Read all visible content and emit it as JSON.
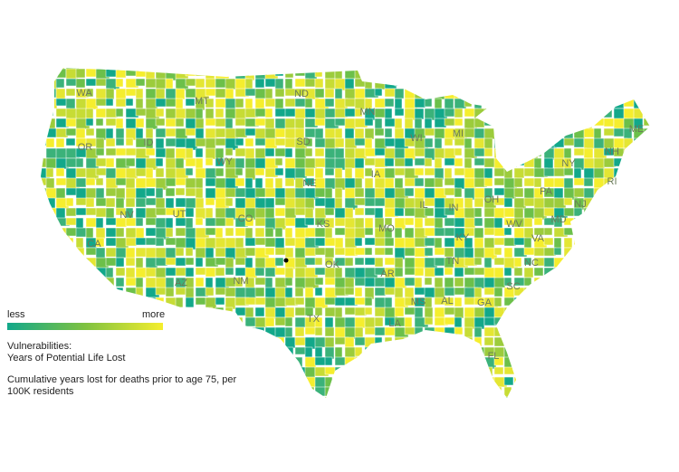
{
  "map": {
    "state_labels": [
      "WA",
      "MT",
      "ND",
      "MN",
      "ME",
      "OR",
      "ID",
      "WY",
      "SD",
      "WI",
      "MI",
      "NY",
      "NH",
      "IA",
      "NE",
      "PA",
      "RI",
      "NV",
      "UT",
      "CO",
      "KS",
      "IL",
      "IN",
      "OH",
      "NJ",
      "MD",
      "MO",
      "WV",
      "CA",
      "KY",
      "VA",
      "OK",
      "AR",
      "TN",
      "NC",
      "AZ",
      "NM",
      "SC",
      "MS",
      "AL",
      "GA",
      "TX",
      "LA",
      "FL"
    ]
  },
  "legend": {
    "low": "less",
    "high": "more"
  },
  "caption": {
    "title": "Vulnerabilities:",
    "subtitle": "Years of Potential Life Lost",
    "description": "Cumulative years lost for deaths prior to age 75, per 100K residents"
  }
}
